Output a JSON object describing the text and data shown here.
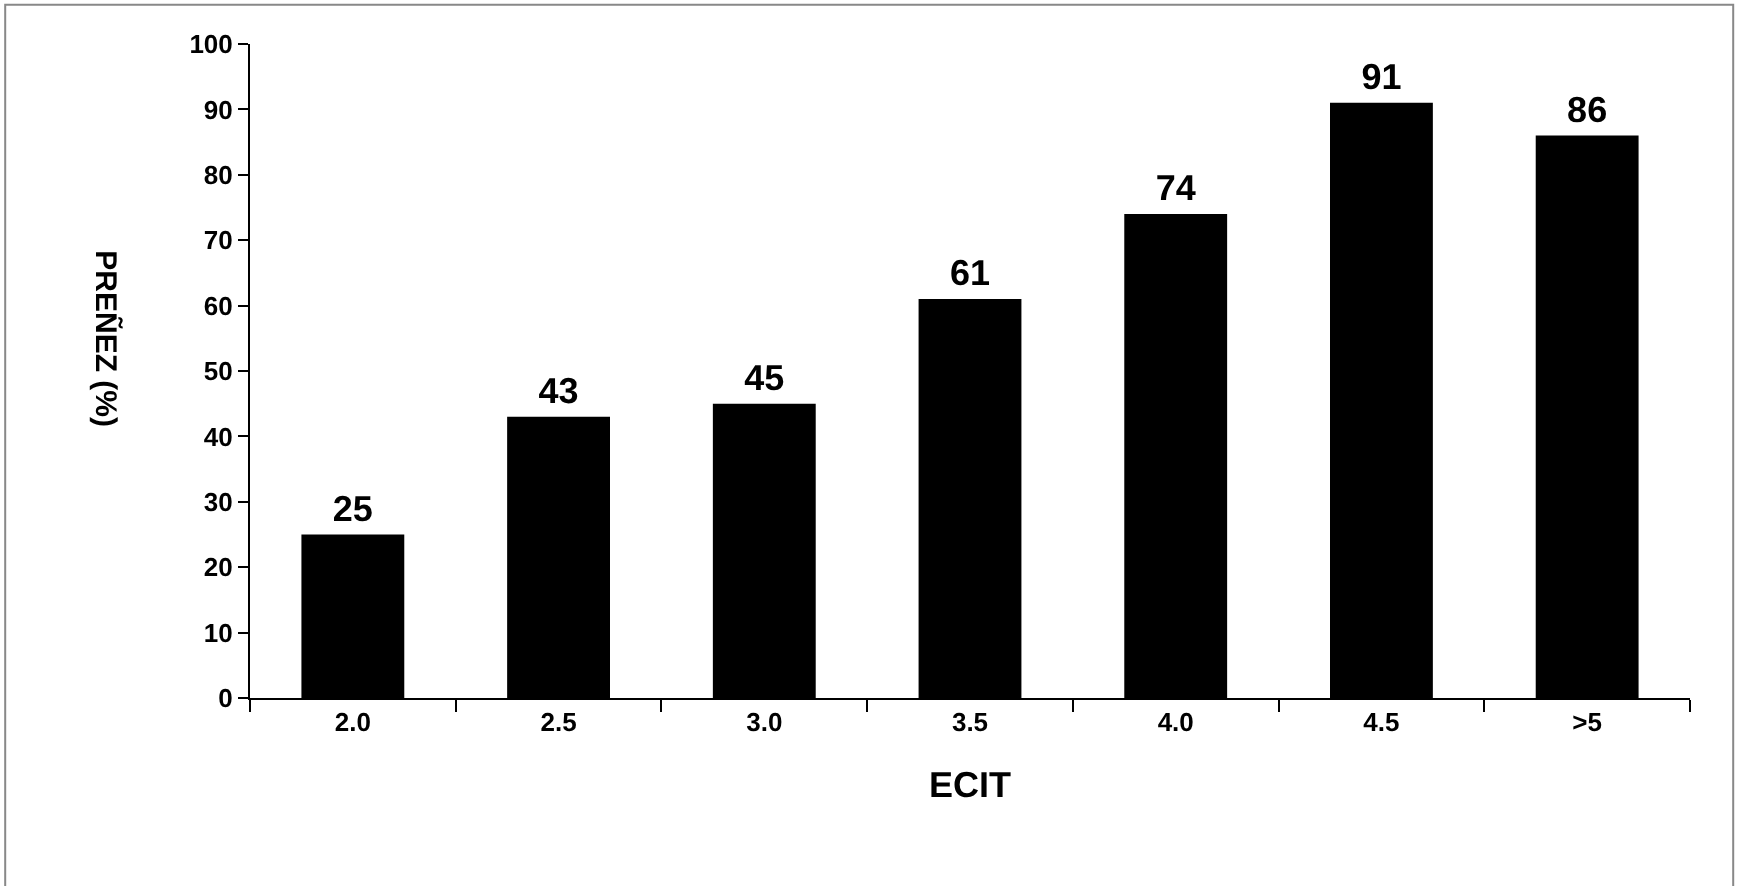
{
  "chart_data": {
    "type": "bar",
    "xlabel": "ECIT",
    "ylabel": "PREÑEZ (%)",
    "categories": [
      "2.0",
      "2.5",
      "3.0",
      "3.5",
      "4.0",
      "4.5",
      ">5"
    ],
    "values": [
      25,
      43,
      45,
      61,
      74,
      91,
      86
    ],
    "color": "#000000",
    "ylim": [
      0,
      100
    ],
    "yticks": [
      0,
      10,
      20,
      30,
      40,
      50,
      60,
      70,
      80,
      90,
      100
    ],
    "grid": false,
    "data_labels": true
  }
}
